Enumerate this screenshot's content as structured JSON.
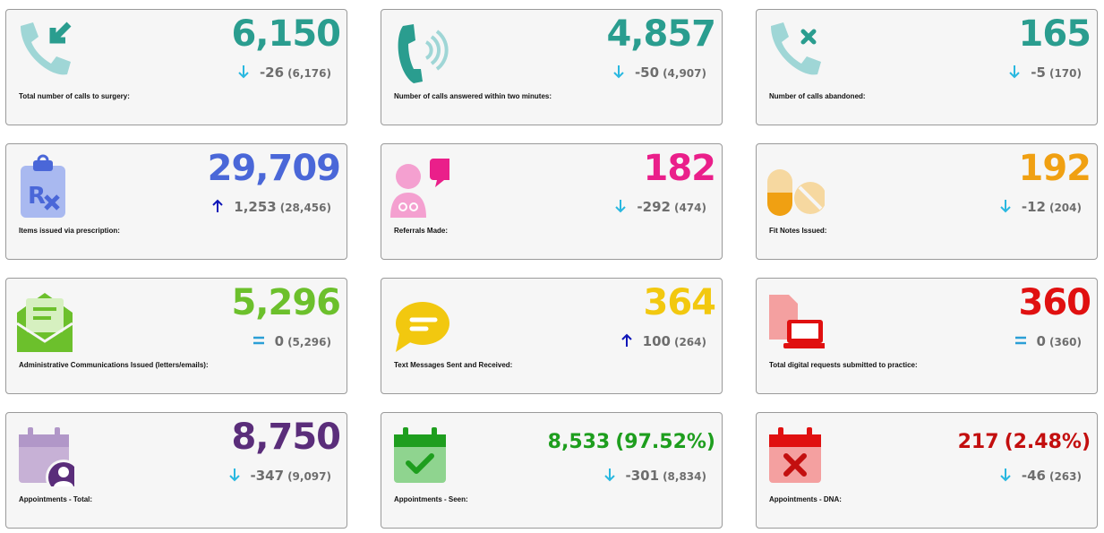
{
  "colors": {
    "teal": "#2a9d8f",
    "blue": "#4a67d8",
    "pink": "#ea1f8a",
    "orange": "#f0a012",
    "green": "#6cc02c",
    "yellow": "#f2c80f",
    "red": "#e01010",
    "purple": "#5a2d7a",
    "darkgreen": "#1e9e1e",
    "darkred": "#c30f0f",
    "arrow_down": "#29b8e0",
    "arrow_up": "#0f16b8",
    "equals": "#2b9fd6"
  },
  "cards": [
    {
      "id": "total-calls",
      "label": "Total number of calls to surgery:",
      "value": "6,150",
      "change": "-26",
      "previous": "(6,176)",
      "trend": "down",
      "icon": "phone-incoming-icon"
    },
    {
      "id": "calls-answered",
      "label": "Number of calls answered within two minutes:",
      "value": "4,857",
      "change": "-50",
      "previous": "(4,907)",
      "trend": "down",
      "icon": "phone-ringing-icon"
    },
    {
      "id": "calls-abandoned",
      "label": "Number of calls abandoned:",
      "value": "165",
      "change": "-5",
      "previous": "(170)",
      "trend": "down",
      "icon": "phone-missed-icon"
    },
    {
      "id": "prescription-items",
      "label": "Items issued via prescription:",
      "value": "29,709",
      "change": "1,253",
      "previous": "(28,456)",
      "trend": "up",
      "icon": "prescription-clipboard-icon"
    },
    {
      "id": "referrals",
      "label": "Referrals Made:",
      "value": "182",
      "change": "-292",
      "previous": "(474)",
      "trend": "down",
      "icon": "doctor-referral-icon"
    },
    {
      "id": "fit-notes",
      "label": "Fit Notes Issued:",
      "value": "192",
      "change": "-12",
      "previous": "(204)",
      "trend": "down",
      "icon": "pills-icon"
    },
    {
      "id": "admin-comms",
      "label": "Administrative Communications Issued (letters/emails):",
      "value": "5,296",
      "change": "0",
      "previous": "(5,296)",
      "trend": "same",
      "icon": "envelope-letter-icon"
    },
    {
      "id": "text-messages",
      "label": "Text Messages Sent and Received:",
      "value": "364",
      "change": "100",
      "previous": "(264)",
      "trend": "up",
      "icon": "speech-bubble-icon"
    },
    {
      "id": "digital-requests",
      "label": "Total digital requests submitted to practice:",
      "value": "360",
      "change": "0",
      "previous": "(360)",
      "trend": "same",
      "icon": "document-laptop-icon"
    },
    {
      "id": "appointments-total",
      "label": "Appointments - Total:",
      "value": "8,750",
      "change": "-347",
      "previous": "(9,097)",
      "trend": "down",
      "icon": "calendar-person-icon"
    },
    {
      "id": "appointments-seen",
      "label": "Appointments - Seen:",
      "value": "8,533",
      "percent": "(97.52%)",
      "change": "-301",
      "previous": "(8,834)",
      "trend": "down",
      "icon": "calendar-check-icon"
    },
    {
      "id": "appointments-dna",
      "label": "Appointments - DNA:",
      "value": "217",
      "percent": "(2.48%)",
      "change": "-46",
      "previous": "(263)",
      "trend": "down",
      "icon": "calendar-cross-icon"
    }
  ]
}
